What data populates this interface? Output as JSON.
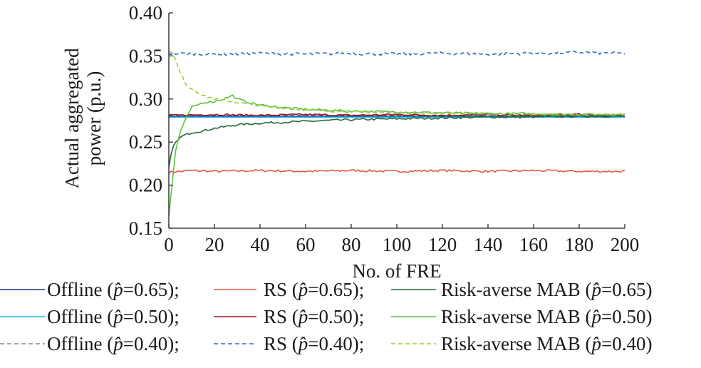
{
  "chart_data": {
    "type": "line",
    "title": "",
    "xlabel": "No. of FRE",
    "ylabel_lines": [
      "Actual aggregated",
      "power (p.u.)"
    ],
    "xlim": [
      0,
      200
    ],
    "ylim": [
      0.15,
      0.4
    ],
    "xticks": [
      0,
      20,
      40,
      60,
      80,
      100,
      120,
      140,
      160,
      180,
      200
    ],
    "yticks": [
      0.15,
      0.2,
      0.25,
      0.3,
      0.35,
      0.4
    ],
    "ytick_labels": [
      "0.15",
      "0.20",
      "0.25",
      "0.30",
      "0.35",
      "0.40"
    ],
    "grid": false,
    "legend_position": "bottom",
    "legend_columns": 3,
    "series": [
      {
        "name": "Offline (p̂=0.65);",
        "color": "#1f2d8c",
        "dash": "solid",
        "x": [
          0,
          200
        ],
        "values": [
          0.28,
          0.28
        ]
      },
      {
        "name": "RS (p̂=0.65);",
        "color": "#e3573c",
        "dash": "solid",
        "x": [
          0,
          10,
          20,
          40,
          60,
          80,
          100,
          120,
          140,
          160,
          180,
          200
        ],
        "values": [
          0.215,
          0.217,
          0.216,
          0.217,
          0.216,
          0.217,
          0.216,
          0.217,
          0.216,
          0.217,
          0.216,
          0.216
        ]
      },
      {
        "name": "Risk-averse MAB (p̂=0.65)",
        "color": "#1f6b3a",
        "dash": "solid",
        "x": [
          0,
          1,
          2,
          4,
          6,
          10,
          15,
          20,
          30,
          40,
          60,
          80,
          100,
          120,
          140,
          160,
          180,
          200
        ],
        "values": [
          0.22,
          0.235,
          0.245,
          0.253,
          0.257,
          0.261,
          0.263,
          0.266,
          0.27,
          0.272,
          0.274,
          0.276,
          0.277,
          0.278,
          0.279,
          0.279,
          0.28,
          0.28
        ]
      },
      {
        "name": "Offline (p̂=0.50);",
        "color": "#1ab0e0",
        "dash": "solid",
        "x": [
          0,
          200
        ],
        "values": [
          0.279,
          0.279
        ]
      },
      {
        "name": "RS (p̂=0.50);",
        "color": "#a3182c",
        "dash": "solid",
        "x": [
          0,
          20,
          40,
          60,
          80,
          100,
          120,
          140,
          160,
          180,
          200
        ],
        "values": [
          0.281,
          0.282,
          0.281,
          0.282,
          0.281,
          0.282,
          0.281,
          0.282,
          0.281,
          0.282,
          0.281
        ]
      },
      {
        "name": "Risk-averse MAB (p̂=0.50)",
        "color": "#5cc043",
        "dash": "solid",
        "x": [
          0,
          1,
          2,
          3,
          5,
          8,
          10,
          15,
          20,
          25,
          28,
          30,
          35,
          40,
          50,
          60,
          80,
          100,
          120,
          140,
          160,
          180,
          200
        ],
        "values": [
          0.165,
          0.19,
          0.215,
          0.24,
          0.262,
          0.28,
          0.29,
          0.296,
          0.297,
          0.301,
          0.304,
          0.3,
          0.296,
          0.293,
          0.29,
          0.288,
          0.286,
          0.285,
          0.284,
          0.283,
          0.283,
          0.282,
          0.282
        ]
      },
      {
        "name": "Offline (p̂=0.40);",
        "color": "#8a8a8a",
        "dash": "dash",
        "x": [
          0,
          200
        ],
        "values": [
          0.281,
          0.281
        ]
      },
      {
        "name": "RS (p̂=0.40);",
        "color": "#2e6fbe",
        "dash": "dash",
        "x": [
          0,
          20,
          40,
          60,
          80,
          100,
          120,
          140,
          160,
          180,
          200
        ],
        "values": [
          0.353,
          0.352,
          0.353,
          0.352,
          0.353,
          0.352,
          0.353,
          0.352,
          0.353,
          0.354,
          0.353
        ]
      },
      {
        "name": "Risk-averse MAB (p̂=0.40)",
        "color": "#9acd32",
        "dash": "dash",
        "x": [
          0,
          1,
          3,
          5,
          8,
          10,
          15,
          20,
          25,
          30,
          40,
          60,
          80,
          100,
          120,
          140,
          160,
          180,
          200
        ],
        "values": [
          0.356,
          0.355,
          0.345,
          0.33,
          0.315,
          0.312,
          0.304,
          0.3,
          0.298,
          0.296,
          0.292,
          0.287,
          0.285,
          0.284,
          0.283,
          0.283,
          0.282,
          0.282,
          0.282
        ]
      }
    ]
  }
}
